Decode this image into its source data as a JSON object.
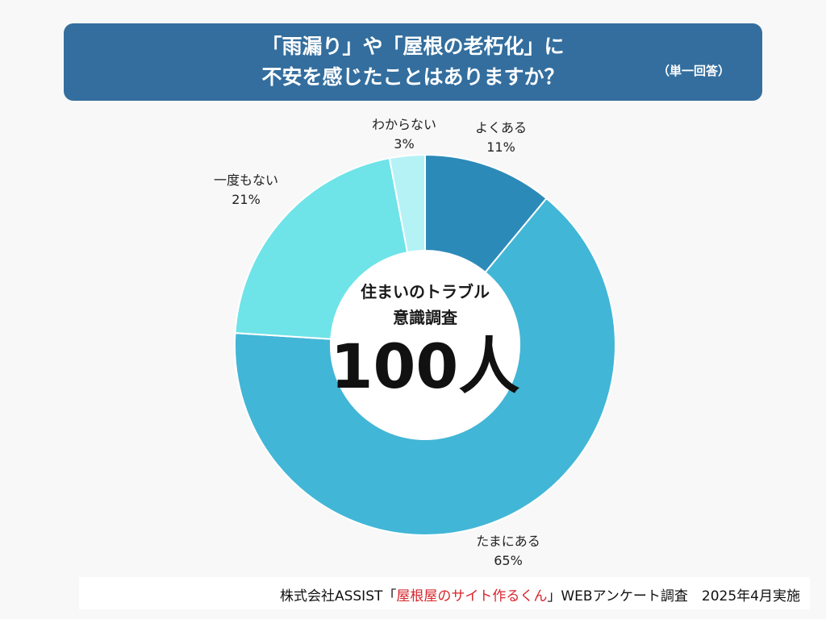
{
  "header": {
    "title_line1": "「雨漏り」や「屋根の老朽化」に",
    "title_line2": "不安を感じたことはありますか？",
    "note": "（単一回答）"
  },
  "center": {
    "line1": "住まいのトラブル",
    "line2": "意識調査",
    "count": "100人"
  },
  "chart_data": {
    "type": "pie",
    "donut": true,
    "title": "「雨漏り」や「屋根の老朽化」に不安を感じたことはありますか？",
    "slices": [
      {
        "label": "よくある",
        "value": 11,
        "value_label": "11%",
        "color": "#2c8ab9"
      },
      {
        "label": "たまにある",
        "value": 65,
        "value_label": "65%",
        "color": "#42b6d6"
      },
      {
        "label": "一度もない",
        "value": 21,
        "value_label": "21%",
        "color": "#6ee3e8"
      },
      {
        "label": "わからない",
        "value": 3,
        "value_label": "3%",
        "color": "#b4f2f6"
      }
    ],
    "start_angle_deg": 0,
    "direction": "clockwise"
  },
  "footer": {
    "prefix": "株式会社ASSIST「",
    "highlight": "屋根屋のサイト作るくん",
    "suffix": "」WEBアンケート調査　2025年4月実施"
  }
}
